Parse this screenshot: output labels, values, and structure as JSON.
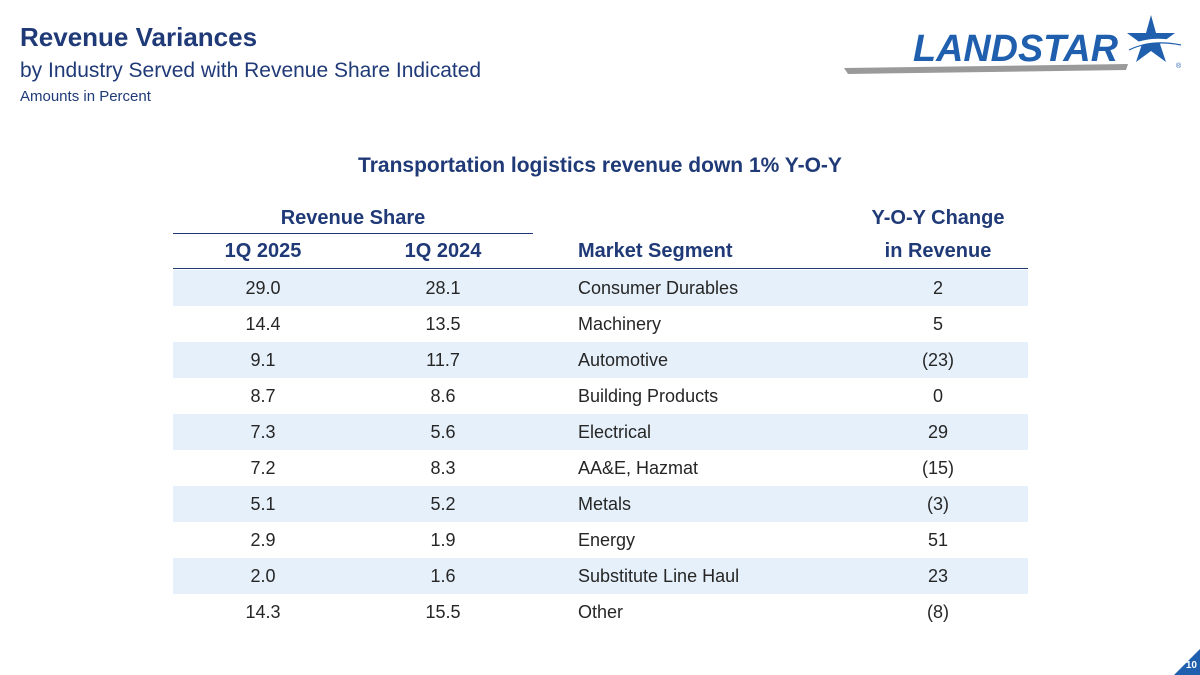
{
  "header": {
    "title": "Revenue Variances",
    "subtitle": "by Industry Served with Revenue Share Indicated",
    "units": "Amounts in Percent"
  },
  "logo": {
    "text": "LANDSTAR",
    "registered": "®",
    "brand_color": "#1f5fae"
  },
  "headline": "Transportation logistics revenue down 1% Y-O-Y",
  "table": {
    "group_header": "Revenue Share",
    "col_q2025": "1Q 2025",
    "col_q2024": "1Q 2024",
    "col_segment": "Market Segment",
    "col_yoy_line1": "Y-O-Y Change",
    "col_yoy_line2": "in Revenue",
    "rows": [
      {
        "q2025": "29.0",
        "q2024": "28.1",
        "segment": "Consumer Durables",
        "yoy": "2"
      },
      {
        "q2025": "14.4",
        "q2024": "13.5",
        "segment": "Machinery",
        "yoy": "5"
      },
      {
        "q2025": "9.1",
        "q2024": "11.7",
        "segment": "Automotive",
        "yoy": "(23)"
      },
      {
        "q2025": "8.7",
        "q2024": "8.6",
        "segment": "Building Products",
        "yoy": "0"
      },
      {
        "q2025": "7.3",
        "q2024": "5.6",
        "segment": "Electrical",
        "yoy": "29"
      },
      {
        "q2025": "7.2",
        "q2024": "8.3",
        "segment": "AA&E, Hazmat",
        "yoy": "(15)"
      },
      {
        "q2025": "5.1",
        "q2024": "5.2",
        "segment": "Metals",
        "yoy": "(3)"
      },
      {
        "q2025": "2.9",
        "q2024": "1.9",
        "segment": "Energy",
        "yoy": "51"
      },
      {
        "q2025": "2.0",
        "q2024": "1.6",
        "segment": "Substitute Line Haul",
        "yoy": "23"
      },
      {
        "q2025": "14.3",
        "q2024": "15.5",
        "segment": "Other",
        "yoy": "(8)"
      }
    ]
  },
  "page_number": "10",
  "colors": {
    "heading": "#1f3a77",
    "row_shade": "#e6f0fa",
    "corner": "#1f5fae"
  }
}
